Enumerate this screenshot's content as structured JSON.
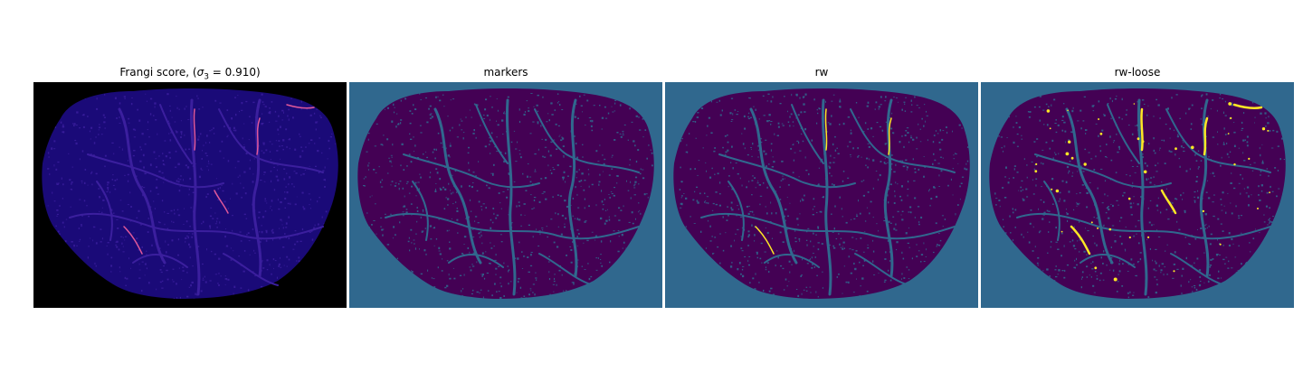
{
  "figure": {
    "panels": [
      {
        "title_prefix": "Frangi score, (",
        "title_sym": "σ",
        "title_sub": "3",
        "title_suffix": " = 0.910)",
        "colormap": "plasma",
        "background": "#000000",
        "tissue": "#1a0a78",
        "vessel": "#3b1f9e",
        "highlight": "#e0589a"
      },
      {
        "title": "markers",
        "colormap": "viridis",
        "background": "#30688e",
        "tissue": "#440154",
        "vessel": "#30688e",
        "highlight": "#30688e"
      },
      {
        "title": "rw",
        "colormap": "viridis",
        "background": "#30688e",
        "tissue": "#440154",
        "vessel": "#30688e",
        "highlight": "#fde725"
      },
      {
        "title": "rw-loose",
        "colormap": "viridis",
        "background": "#30688e",
        "tissue": "#440154",
        "vessel": "#30688e",
        "highlight": "#fde725"
      }
    ]
  }
}
